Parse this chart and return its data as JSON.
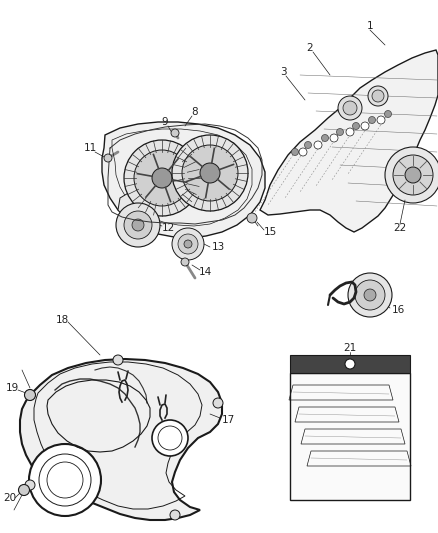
{
  "background_color": "#ffffff",
  "fig_width": 4.38,
  "fig_height": 5.33,
  "dpi": 100,
  "line_color": "#1a1a1a",
  "label_fontsize": 7.5,
  "label_color": "#222222",
  "lw_part": 1.0,
  "lw_thin": 0.5,
  "lw_leader": 0.5
}
